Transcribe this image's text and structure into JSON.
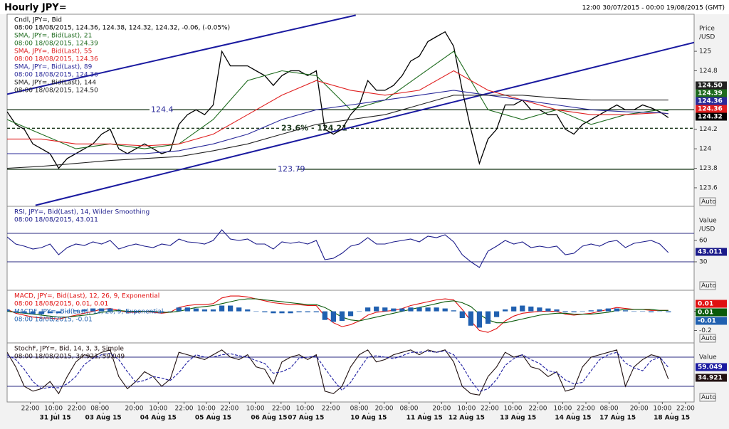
{
  "header": {
    "title": "Hourly JPY=",
    "range": "12:00 30/07/2015 - 00:00 19/08/2015 (GMT)"
  },
  "chart_data": [
    {
      "type": "line",
      "axis_title": "Price",
      "axis_unit": "/USD",
      "auto": "Auto",
      "xlim": [
        0,
        80
      ],
      "ylim": [
        123.41,
        125.38
      ],
      "yticks": [
        123.6,
        123.8,
        124,
        124.2,
        124.8,
        125
      ],
      "levels": [
        124.4,
        123.79,
        {
          "value": 124.21,
          "label": "23.6% - 124.21"
        }
      ],
      "level_dash": [
        false,
        false,
        true
      ],
      "trendlines": [
        {
          "x": [
            0,
            40.6
          ],
          "y": [
            124.56,
            125.37
          ]
        },
        {
          "x": [
            3.3,
            80
          ],
          "y": [
            123.42,
            125.09
          ]
        }
      ],
      "series": [
        {
          "name": "Cndl, JPY=, Bid",
          "info": "08:00 18/08/2015, 124.36, 124.38, 124.32, 124.32, -0.06, (-0.05%)",
          "color": "#000000",
          "values": [
            124.38,
            124.25,
            124.2,
            124.05,
            124.0,
            123.95,
            123.8,
            123.9,
            123.95,
            124.0,
            124.05,
            124.15,
            124.2,
            124.0,
            123.95,
            124.0,
            124.05,
            124.0,
            123.95,
            123.98,
            124.25,
            124.35,
            124.4,
            124.35,
            124.45,
            125.0,
            124.85,
            124.85,
            124.85,
            124.8,
            124.75,
            124.65,
            124.75,
            124.8,
            124.8,
            124.75,
            124.8,
            124.2,
            124.15,
            124.2,
            124.35,
            124.45,
            124.7,
            124.6,
            124.6,
            124.65,
            124.75,
            124.9,
            124.95,
            125.1,
            125.15,
            125.2,
            125.05,
            124.6,
            124.2,
            123.85,
            124.1,
            124.2,
            124.45,
            124.45,
            124.5,
            124.4,
            124.4,
            124.35,
            124.35,
            124.2,
            124.15,
            124.25,
            124.3,
            124.35,
            124.4,
            124.45,
            124.4,
            124.4,
            124.45,
            124.42,
            124.38,
            124.32
          ]
        },
        {
          "name": "SMA, JPY=, Bid(Last), 21",
          "info": "08:00 18/08/2015, 124.39",
          "color": "#1e6b1e",
          "x": [
            0,
            4,
            8,
            12,
            16,
            20,
            24,
            28,
            32,
            36,
            40,
            44,
            48,
            52,
            56,
            60,
            64,
            68,
            72,
            76,
            77
          ],
          "values": [
            124.3,
            124.15,
            124.0,
            124.05,
            124.0,
            124.05,
            124.3,
            124.7,
            124.8,
            124.75,
            124.4,
            124.5,
            124.75,
            125.0,
            124.4,
            124.3,
            124.4,
            124.25,
            124.35,
            124.4,
            124.39
          ]
        },
        {
          "name": "SMA, JPY=, Bid(Last), 55",
          "info": "08:00 18/08/2015, 124.36",
          "color": "#e02020",
          "x": [
            0,
            4,
            8,
            12,
            16,
            20,
            24,
            28,
            32,
            36,
            40,
            44,
            48,
            52,
            56,
            60,
            64,
            68,
            72,
            76,
            77
          ],
          "values": [
            124.1,
            124.1,
            124.05,
            124.05,
            124.03,
            124.05,
            124.15,
            124.35,
            124.55,
            124.7,
            124.6,
            124.55,
            124.6,
            124.8,
            124.6,
            124.5,
            124.4,
            124.35,
            124.35,
            124.37,
            124.36
          ]
        },
        {
          "name": "SMA, JPY=, Bid(Last), 89",
          "info": "08:00 18/08/2015, 124.36",
          "color": "#2a2a9a",
          "x": [
            0,
            4,
            8,
            12,
            16,
            20,
            24,
            28,
            32,
            36,
            40,
            44,
            48,
            52,
            56,
            60,
            64,
            68,
            72,
            76,
            77
          ],
          "values": [
            123.95,
            123.95,
            123.95,
            123.95,
            123.95,
            123.98,
            124.05,
            124.15,
            124.3,
            124.4,
            124.45,
            124.5,
            124.55,
            124.6,
            124.55,
            124.5,
            124.45,
            124.4,
            124.38,
            124.37,
            124.36
          ]
        },
        {
          "name": "SMA, JPY=, Bid(Last), 144",
          "info": "08:00 18/08/2015, 124.50",
          "color": "#222222",
          "x": [
            0,
            4,
            8,
            12,
            16,
            20,
            24,
            28,
            32,
            36,
            40,
            44,
            48,
            52,
            56,
            60,
            64,
            68,
            72,
            76,
            77
          ],
          "values": [
            123.8,
            123.82,
            123.85,
            123.88,
            123.9,
            123.92,
            123.98,
            124.05,
            124.15,
            124.25,
            124.3,
            124.35,
            124.45,
            124.55,
            124.55,
            124.55,
            124.52,
            124.5,
            124.5,
            124.5,
            124.5
          ],
          "value_labels": [
            null,
            null,
            null,
            null,
            null,
            null,
            null,
            null,
            null,
            null,
            null,
            null,
            null,
            null,
            null,
            null,
            null,
            null,
            null,
            null,
            "124.50"
          ]
        }
      ]
    },
    {
      "type": "line",
      "axis_title": "Value",
      "axis_unit": "/USD",
      "auto": "Auto",
      "xlim": [
        0,
        80
      ],
      "ylim": [
        -10,
        108
      ],
      "yticks": [
        30,
        60
      ],
      "levels": [
        70,
        30
      ],
      "series": [
        {
          "name": "RSI, JPY=, Bid(Last), 14, Wilder Smoothing",
          "info": "08:00 18/08/2015, 43.011",
          "color": "#1a1a8a",
          "values": [
            65,
            55,
            52,
            48,
            50,
            55,
            40,
            50,
            55,
            53,
            58,
            55,
            60,
            48,
            52,
            55,
            52,
            50,
            55,
            53,
            62,
            58,
            57,
            55,
            60,
            75,
            62,
            60,
            62,
            55,
            55,
            48,
            58,
            56,
            58,
            55,
            60,
            33,
            35,
            42,
            52,
            55,
            64,
            55,
            55,
            58,
            60,
            62,
            58,
            66,
            64,
            68,
            58,
            40,
            30,
            22,
            45,
            52,
            60,
            55,
            58,
            50,
            52,
            50,
            52,
            40,
            42,
            52,
            55,
            52,
            58,
            60,
            50,
            56,
            58,
            60,
            55,
            43.011
          ]
        }
      ]
    },
    {
      "type": "line",
      "auto": "Auto",
      "xlim": [
        0,
        80
      ],
      "ylim": [
        -0.33,
        0.22
      ],
      "yticks": [
        0,
        -0.2
      ],
      "series": [
        {
          "name": "MACD, JPY=, Bid(Last), 12, 26, 9, Exponential",
          "info": "08:00 18/08/2015, 0.01, 0.01",
          "color": "#e01010",
          "values": [
            0.02,
            -0.02,
            -0.04,
            -0.06,
            -0.07,
            -0.07,
            -0.08,
            -0.06,
            -0.04,
            -0.02,
            0.0,
            0.02,
            0.03,
            0.01,
            -0.01,
            -0.01,
            0.0,
            -0.01,
            -0.02,
            -0.01,
            0.04,
            0.06,
            0.07,
            0.07,
            0.08,
            0.14,
            0.16,
            0.16,
            0.15,
            0.13,
            0.11,
            0.09,
            0.08,
            0.07,
            0.07,
            0.06,
            0.06,
            -0.05,
            -0.12,
            -0.16,
            -0.14,
            -0.1,
            -0.04,
            -0.01,
            0.0,
            0.01,
            0.03,
            0.06,
            0.08,
            0.1,
            0.12,
            0.13,
            0.12,
            0.02,
            -0.1,
            -0.2,
            -0.22,
            -0.18,
            -0.1,
            -0.05,
            -0.02,
            -0.01,
            0.0,
            0.0,
            0.0,
            -0.03,
            -0.04,
            -0.03,
            -0.02,
            0.0,
            0.02,
            0.04,
            0.03,
            0.02,
            0.02,
            0.01,
            0.01,
            0.01
          ]
        },
        {
          "color": "#0a5a0a",
          "values": [
            0.0,
            -0.01,
            -0.02,
            -0.03,
            -0.04,
            -0.05,
            -0.06,
            -0.06,
            -0.05,
            -0.04,
            -0.03,
            -0.01,
            0.0,
            0.01,
            0.0,
            0.0,
            0.0,
            0.0,
            -0.01,
            -0.01,
            0.0,
            0.02,
            0.04,
            0.05,
            0.06,
            0.08,
            0.1,
            0.12,
            0.13,
            0.13,
            0.12,
            0.11,
            0.1,
            0.09,
            0.08,
            0.07,
            0.07,
            0.04,
            -0.01,
            -0.06,
            -0.09,
            -0.1,
            -0.08,
            -0.06,
            -0.04,
            -0.02,
            0.0,
            0.02,
            0.04,
            0.06,
            0.08,
            0.1,
            0.11,
            0.09,
            0.05,
            -0.03,
            -0.09,
            -0.12,
            -0.12,
            -0.1,
            -0.08,
            -0.06,
            -0.04,
            -0.03,
            -0.02,
            -0.02,
            -0.03,
            -0.03,
            -0.03,
            -0.02,
            -0.01,
            0.01,
            0.02,
            0.02,
            0.02,
            0.02,
            0.01,
            0.01
          ]
        },
        {
          "name": "MACDF, JPY=, Bid(Last), 12, 26, 9, Exponential",
          "info": "08:00 18/08/2015, -0.01",
          "color": "#2060b0",
          "kind": "bar",
          "values": [
            0.02,
            -0.01,
            -0.02,
            -0.03,
            -0.03,
            -0.02,
            -0.02,
            0,
            0.01,
            0.02,
            0.03,
            0.03,
            0.03,
            0,
            -0.01,
            -0.01,
            0,
            -0.01,
            -0.01,
            0,
            0.04,
            0.04,
            0.03,
            0.02,
            0.02,
            0.06,
            0.06,
            0.04,
            0.02,
            0,
            -0.01,
            -0.02,
            -0.02,
            -0.02,
            -0.01,
            -0.01,
            -0.01,
            -0.09,
            -0.11,
            -0.1,
            -0.05,
            0,
            0.04,
            0.05,
            0.04,
            0.03,
            0.03,
            0.04,
            0.04,
            0.04,
            0.04,
            0.03,
            0.01,
            -0.07,
            -0.15,
            -0.17,
            -0.13,
            -0.06,
            0.02,
            0.05,
            0.06,
            0.05,
            0.04,
            0.03,
            0.02,
            -0.01,
            -0.01,
            0,
            0.01,
            0.02,
            0.03,
            0.03,
            0.01,
            0,
            0,
            -0.01,
            0,
            -0.01
          ]
        }
      ]
    },
    {
      "type": "line",
      "axis_title": "Value",
      "auto": "Auto",
      "xlim": [
        0,
        80
      ],
      "ylim": [
        -12.2,
        109.3
      ],
      "levels": [
        80,
        20
      ],
      "series": [
        {
          "name": "StochF, JPY=, Bid, 14, 3, 3, Simple",
          "info": "08:00 18/08/2015, 34.921, 59.049",
          "color": "#201010",
          "values": [
            90,
            60,
            20,
            10,
            15,
            30,
            5,
            40,
            70,
            85,
            80,
            90,
            95,
            40,
            15,
            30,
            50,
            40,
            20,
            35,
            90,
            85,
            80,
            75,
            85,
            95,
            80,
            75,
            85,
            60,
            55,
            25,
            70,
            80,
            85,
            75,
            85,
            10,
            5,
            20,
            60,
            85,
            95,
            70,
            75,
            85,
            90,
            95,
            85,
            95,
            90,
            95,
            70,
            20,
            5,
            2,
            40,
            60,
            90,
            80,
            85,
            60,
            55,
            40,
            50,
            10,
            15,
            60,
            80,
            85,
            90,
            95,
            20,
            60,
            75,
            85,
            80,
            34.921
          ]
        },
        {
          "color": "#1a1aa0",
          "dash": true,
          "values": [
            85,
            75,
            55,
            30,
            15,
            18,
            17,
            25,
            40,
            65,
            78,
            85,
            88,
            75,
            50,
            28,
            32,
            40,
            37,
            32,
            48,
            70,
            85,
            80,
            80,
            85,
            87,
            83,
            80,
            73,
            67,
            47,
            50,
            58,
            78,
            80,
            82,
            57,
            33,
            12,
            28,
            55,
            80,
            83,
            80,
            77,
            83,
            90,
            90,
            92,
            90,
            93,
            85,
            62,
            32,
            9,
            15,
            34,
            63,
            77,
            85,
            75,
            67,
            52,
            48,
            33,
            25,
            28,
            52,
            75,
            85,
            90,
            68,
            58,
            52,
            73,
            80,
            59.049
          ]
        }
      ],
      "xticks": [
        {
          "value": 2.7,
          "label": "22:00"
        },
        {
          "value": 5.4,
          "label": "10:00"
        },
        {
          "value": 8.1,
          "label": "22:00"
        },
        {
          "value": 10.8,
          "label": "08:00"
        },
        {
          "value": 14.8,
          "label": "20:00"
        },
        {
          "value": 17.6,
          "label": "10:00"
        },
        {
          "value": 20.6,
          "label": "22:00"
        },
        {
          "value": 23.2,
          "label": "10:00"
        },
        {
          "value": 25.9,
          "label": "22:00"
        },
        {
          "value": 28.9,
          "label": "10:00"
        },
        {
          "value": 31.9,
          "label": "22:00"
        },
        {
          "value": 34.7,
          "label": "10:00"
        },
        {
          "value": 37.7,
          "label": "22:00"
        },
        {
          "value": 41.0,
          "label": "08:00"
        },
        {
          "value": 43.9,
          "label": "20:00"
        },
        {
          "value": 46.8,
          "label": "08:00"
        },
        {
          "value": 50.6,
          "label": "20:00"
        },
        {
          "value": 53.5,
          "label": "10:00"
        },
        {
          "value": 56.2,
          "label": "22:00"
        },
        {
          "value": 58.9,
          "label": "10:00"
        },
        {
          "value": 61.8,
          "label": "22:00"
        },
        {
          "value": 64.7,
          "label": "10:00"
        },
        {
          "value": 67.4,
          "label": "22:00"
        },
        {
          "value": 70.1,
          "label": "08:00"
        },
        {
          "value": 73.6,
          "label": "20:00"
        },
        {
          "value": 76.3,
          "label": "10:00"
        },
        {
          "value": 79.0,
          "label": "22:00"
        }
      ],
      "date_ticks": [
        {
          "value": 5.6,
          "label": "31 Jul 15"
        },
        {
          "value": 11.2,
          "label": "03 Aug 15"
        },
        {
          "value": 17.6,
          "label": "04 Aug 15"
        },
        {
          "value": 24.0,
          "label": "05 Aug 15"
        },
        {
          "value": 30.5,
          "label": "06 Aug 15"
        },
        {
          "value": 34.8,
          "label": "07 Aug 15"
        },
        {
          "value": 42.1,
          "label": "10 Aug 15"
        },
        {
          "value": 48.6,
          "label": "11 Aug 15"
        },
        {
          "value": 53.5,
          "label": "12 Aug 15"
        },
        {
          "value": 59.5,
          "label": "13 Aug 15"
        },
        {
          "value": 65.9,
          "label": "14 Aug 15"
        },
        {
          "value": 71.1,
          "label": "17 Aug 15"
        },
        {
          "value": 77.4,
          "label": "18 Aug 15"
        }
      ]
    }
  ]
}
